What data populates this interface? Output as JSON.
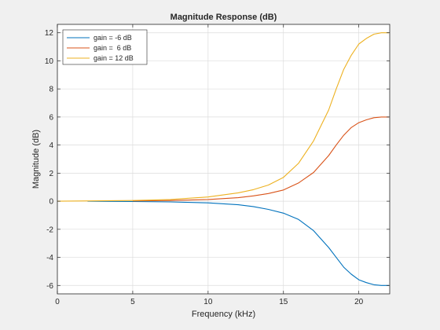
{
  "chart_data": {
    "type": "line",
    "title": "Magnitude Response (dB)",
    "xlabel": "Frequency (kHz)",
    "ylabel": "Magnitude (dB)",
    "xlim": [
      0,
      22.05
    ],
    "ylim": [
      -6.6,
      12.6
    ],
    "xticks": [
      0,
      5,
      10,
      15,
      20
    ],
    "yticks": [
      -6,
      -4,
      -2,
      0,
      2,
      4,
      6,
      8,
      10,
      12
    ],
    "grid": true,
    "legend_position": "top-left",
    "series": [
      {
        "name": "gain = -6 dB",
        "color": "#0072bd",
        "x": [
          2,
          5,
          7.5,
          10,
          12,
          13,
          14,
          15,
          16,
          17,
          18,
          18.5,
          19,
          19.5,
          20,
          20.5,
          21,
          21.5,
          22
        ],
        "y": [
          0,
          -0.02,
          -0.05,
          -0.12,
          -0.25,
          -0.38,
          -0.58,
          -0.85,
          -1.3,
          -2.1,
          -3.3,
          -4.0,
          -4.7,
          -5.2,
          -5.6,
          -5.8,
          -5.95,
          -6.0,
          -6.0
        ]
      },
      {
        "name": "gain =  6 dB",
        "color": "#d95319",
        "x": [
          5,
          7.5,
          10,
          12,
          13,
          14,
          15,
          16,
          17,
          18,
          18.5,
          19,
          19.5,
          20,
          20.5,
          21,
          21.5,
          22
        ],
        "y": [
          0.02,
          0.05,
          0.12,
          0.25,
          0.38,
          0.55,
          0.8,
          1.3,
          2.05,
          3.25,
          4.0,
          4.7,
          5.25,
          5.6,
          5.8,
          5.95,
          6.0,
          6.0
        ]
      },
      {
        "name": "gain = 12 dB",
        "color": "#edb120",
        "x": [
          0,
          5,
          7.5,
          10,
          12,
          13,
          14,
          15,
          16,
          17,
          18,
          18.5,
          19,
          19.5,
          20,
          20.5,
          21,
          21.5,
          22
        ],
        "y": [
          0,
          0.05,
          0.12,
          0.3,
          0.6,
          0.82,
          1.15,
          1.7,
          2.7,
          4.3,
          6.5,
          8.0,
          9.4,
          10.4,
          11.2,
          11.6,
          11.9,
          12.0,
          12.0
        ]
      }
    ]
  }
}
